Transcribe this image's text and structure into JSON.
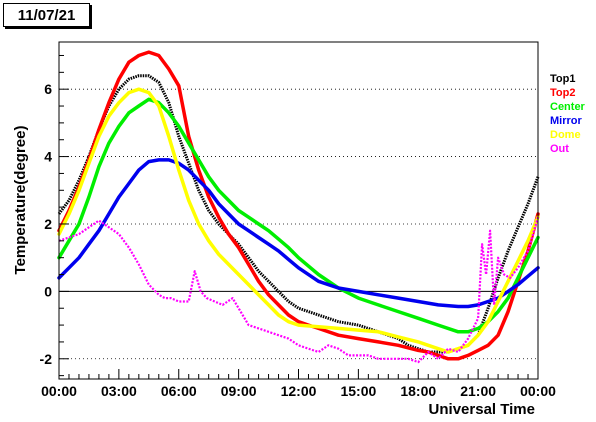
{
  "date_label": "11/07/21",
  "chart_data": {
    "type": "line",
    "title": "",
    "xlabel": "Universal Time",
    "ylabel": "Temperature(degree)",
    "x_ticks": [
      "00:00",
      "03:00",
      "06:00",
      "09:00",
      "12:00",
      "15:00",
      "18:00",
      "21:00",
      "00:00"
    ],
    "x_tick_hours": [
      0,
      3,
      6,
      9,
      12,
      15,
      18,
      21,
      24
    ],
    "y_ticks": [
      -2,
      0,
      2,
      4,
      6
    ],
    "xlim": [
      0,
      24
    ],
    "ylim": [
      -2.6,
      7.4
    ],
    "grid": "horizontal dotted",
    "legend_position": "right",
    "series": [
      {
        "name": "Top1",
        "color": "#000000",
        "x": [
          0,
          0.5,
          1,
          1.5,
          2,
          2.5,
          3,
          3.5,
          4,
          4.5,
          5,
          5.5,
          6,
          6.5,
          7,
          7.5,
          8,
          8.5,
          9,
          9.5,
          10,
          10.5,
          11,
          11.5,
          12,
          12.5,
          13,
          13.5,
          14,
          15,
          16,
          17,
          17.5,
          18,
          18.5,
          19,
          19.5,
          20,
          20.5,
          21,
          21.5,
          22,
          22.5,
          23,
          23.5,
          24
        ],
        "y": [
          2.3,
          2.7,
          3.3,
          4.0,
          4.8,
          5.5,
          6.0,
          6.3,
          6.4,
          6.4,
          6.2,
          5.6,
          4.6,
          3.8,
          3.0,
          2.4,
          2.0,
          1.7,
          1.4,
          1.0,
          0.6,
          0.3,
          0.0,
          -0.3,
          -0.5,
          -0.6,
          -0.7,
          -0.8,
          -0.9,
          -1.0,
          -1.2,
          -1.4,
          -1.6,
          -1.7,
          -1.8,
          -1.8,
          -1.8,
          -1.7,
          -1.6,
          -1.3,
          -0.5,
          0.4,
          1.2,
          1.9,
          2.6,
          3.4
        ]
      },
      {
        "name": "Top2",
        "color": "#ff0000",
        "x": [
          0,
          0.5,
          1,
          1.5,
          2,
          2.5,
          3,
          3.5,
          4,
          4.5,
          5,
          5.5,
          6,
          6.5,
          7,
          7.5,
          8,
          8.5,
          9,
          9.5,
          10,
          10.5,
          11,
          11.5,
          12,
          12.5,
          13,
          14,
          15,
          16,
          17,
          18,
          18.5,
          19,
          19.5,
          20,
          20.5,
          21,
          21.5,
          22,
          22.5,
          23,
          23.5,
          24
        ],
        "y": [
          1.8,
          2.4,
          3.1,
          3.9,
          4.8,
          5.6,
          6.3,
          6.8,
          7.0,
          7.1,
          7.0,
          6.6,
          6.1,
          4.6,
          3.6,
          2.8,
          2.2,
          1.7,
          1.3,
          0.8,
          0.3,
          -0.1,
          -0.4,
          -0.7,
          -0.9,
          -1.0,
          -1.1,
          -1.3,
          -1.4,
          -1.5,
          -1.6,
          -1.75,
          -1.8,
          -1.9,
          -2.0,
          -2.0,
          -1.9,
          -1.75,
          -1.6,
          -1.3,
          -0.6,
          0.3,
          1.2,
          2.3
        ]
      },
      {
        "name": "Center",
        "color": "#00ee00",
        "x": [
          0,
          0.5,
          1,
          1.5,
          2,
          2.5,
          3,
          3.5,
          4,
          4.5,
          5,
          5.5,
          6,
          6.5,
          7,
          7.5,
          8,
          8.5,
          9,
          9.5,
          10,
          10.5,
          11,
          11.5,
          12,
          13,
          14,
          15,
          16,
          17,
          18,
          19,
          20,
          20.5,
          21,
          21.5,
          22,
          22.5,
          23,
          23.5,
          24
        ],
        "y": [
          1.0,
          1.5,
          2.0,
          2.8,
          3.7,
          4.4,
          4.9,
          5.3,
          5.5,
          5.7,
          5.6,
          5.3,
          4.9,
          4.4,
          3.9,
          3.4,
          3.0,
          2.7,
          2.4,
          2.2,
          2.0,
          1.8,
          1.55,
          1.3,
          1.0,
          0.5,
          0.1,
          -0.2,
          -0.4,
          -0.6,
          -0.8,
          -1.0,
          -1.2,
          -1.2,
          -1.1,
          -0.9,
          -0.6,
          -0.2,
          0.4,
          1.0,
          1.6
        ]
      },
      {
        "name": "Mirror",
        "color": "#0000ee",
        "x": [
          0,
          0.5,
          1,
          1.5,
          2,
          2.5,
          3,
          3.5,
          4,
          4.5,
          5,
          5.5,
          6,
          6.5,
          7,
          7.5,
          8,
          8.5,
          9,
          9.5,
          10,
          10.5,
          11,
          11.5,
          12,
          13,
          14,
          15,
          16,
          17,
          18,
          19,
          20,
          20.5,
          21,
          21.5,
          22,
          22.5,
          23,
          23.5,
          24
        ],
        "y": [
          0.4,
          0.7,
          1.0,
          1.4,
          1.8,
          2.3,
          2.8,
          3.2,
          3.6,
          3.85,
          3.9,
          3.9,
          3.8,
          3.6,
          3.3,
          3.0,
          2.6,
          2.3,
          2.0,
          1.8,
          1.6,
          1.4,
          1.2,
          0.95,
          0.7,
          0.3,
          0.1,
          0.0,
          -0.1,
          -0.2,
          -0.3,
          -0.4,
          -0.45,
          -0.45,
          -0.4,
          -0.3,
          -0.2,
          0.0,
          0.2,
          0.45,
          0.7
        ]
      },
      {
        "name": "Dome",
        "color": "#ffff00",
        "x": [
          0,
          0.5,
          1,
          1.5,
          2,
          2.5,
          3,
          3.5,
          4,
          4.5,
          5,
          5.5,
          6,
          6.5,
          7,
          7.5,
          8,
          8.5,
          9,
          9.5,
          10,
          10.5,
          11,
          11.5,
          12,
          13,
          14,
          15,
          16,
          17,
          18,
          18.5,
          19,
          19.5,
          20,
          20.5,
          21,
          21.5,
          22,
          22.5,
          23,
          23.5,
          24
        ],
        "y": [
          1.7,
          2.3,
          3.0,
          3.8,
          4.6,
          5.2,
          5.6,
          5.9,
          6.0,
          5.9,
          5.5,
          4.6,
          3.6,
          2.7,
          2.0,
          1.5,
          1.1,
          0.8,
          0.5,
          0.2,
          -0.1,
          -0.4,
          -0.7,
          -0.9,
          -1.0,
          -1.05,
          -1.1,
          -1.15,
          -1.2,
          -1.35,
          -1.5,
          -1.6,
          -1.7,
          -1.8,
          -1.7,
          -1.6,
          -1.3,
          -0.9,
          -0.3,
          0.3,
          0.9,
          1.5,
          2.2
        ]
      },
      {
        "name": "Out",
        "color": "#ff00ff",
        "x": [
          0,
          0.5,
          1,
          1.5,
          2,
          2.5,
          3,
          3.5,
          4,
          4.5,
          5,
          5.3,
          5.6,
          6,
          6.5,
          6.8,
          7.1,
          7.4,
          7.8,
          8.2,
          8.7,
          9,
          9.5,
          10,
          10.5,
          11,
          11.5,
          12,
          12.5,
          13,
          13.5,
          14,
          14.5,
          15,
          15.5,
          16,
          16.5,
          17,
          17.5,
          18,
          18.5,
          19,
          19.5,
          20,
          20.5,
          21,
          21.2,
          21.4,
          21.6,
          21.8,
          22,
          22.3,
          22.6,
          23,
          23.5,
          24
        ],
        "y": [
          1.5,
          1.6,
          1.7,
          1.9,
          2.1,
          1.9,
          1.7,
          1.3,
          0.8,
          0.2,
          -0.1,
          -0.2,
          -0.2,
          -0.3,
          -0.3,
          0.6,
          0.0,
          -0.2,
          -0.3,
          -0.4,
          -0.2,
          -0.5,
          -1.0,
          -1.1,
          -1.2,
          -1.3,
          -1.4,
          -1.6,
          -1.7,
          -1.8,
          -1.6,
          -1.7,
          -1.9,
          -1.9,
          -1.9,
          -2.0,
          -2.0,
          -2.0,
          -2.0,
          -2.1,
          -1.8,
          -2.0,
          -1.7,
          -1.8,
          -1.4,
          -0.8,
          1.4,
          0.5,
          1.8,
          -0.4,
          1.0,
          0.5,
          0.4,
          0.7,
          1.2,
          2.2
        ]
      }
    ]
  }
}
